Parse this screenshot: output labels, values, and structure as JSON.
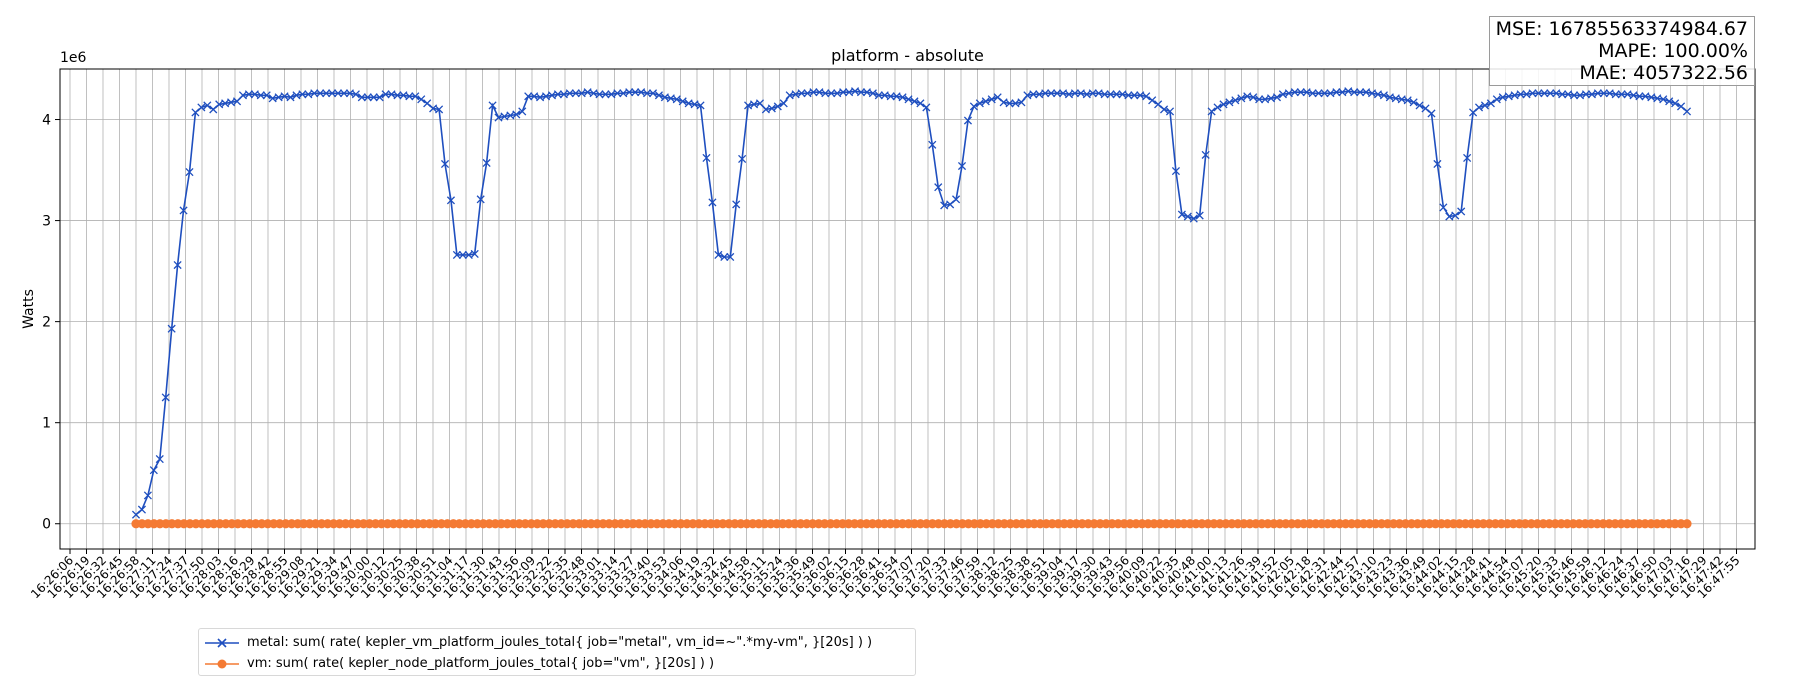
{
  "chart_data": {
    "type": "line",
    "title": "platform - absolute",
    "ylabel": "Watts",
    "y_multiplier_label": "1e6",
    "ylim": [
      -250000,
      4500000
    ],
    "yticks": [
      0,
      1000000,
      2000000,
      3000000,
      4000000
    ],
    "ytick_labels": [
      "0",
      "1",
      "2",
      "3",
      "4"
    ],
    "grid": true,
    "legend_position": "bottom-left",
    "x_tick_labels": [
      "16:26:06",
      "16:26:19",
      "16:26:32",
      "16:26:45",
      "16:26:58",
      "16:27:11",
      "16:27:24",
      "16:27:37",
      "16:27:50",
      "16:28:03",
      "16:28:16",
      "16:28:29",
      "16:28:42",
      "16:28:55",
      "16:29:08",
      "16:29:21",
      "16:29:34",
      "16:29:47",
      "16:30:00",
      "16:30:12",
      "16:30:25",
      "16:30:38",
      "16:30:51",
      "16:31:04",
      "16:31:17",
      "16:31:30",
      "16:31:43",
      "16:31:56",
      "16:32:09",
      "16:32:22",
      "16:32:35",
      "16:32:48",
      "16:33:01",
      "16:33:14",
      "16:33:27",
      "16:33:40",
      "16:33:53",
      "16:34:06",
      "16:34:19",
      "16:34:32",
      "16:34:45",
      "16:34:58",
      "16:35:11",
      "16:35:24",
      "16:35:36",
      "16:35:49",
      "16:36:02",
      "16:36:15",
      "16:36:28",
      "16:36:41",
      "16:36:54",
      "16:37:07",
      "16:37:20",
      "16:37:33",
      "16:37:46",
      "16:37:59",
      "16:38:12",
      "16:38:25",
      "16:38:38",
      "16:38:51",
      "16:39:04",
      "16:39:17",
      "16:39:30",
      "16:39:43",
      "16:39:56",
      "16:40:09",
      "16:40:22",
      "16:40:35",
      "16:40:48",
      "16:41:00",
      "16:41:13",
      "16:41:26",
      "16:41:39",
      "16:41:52",
      "16:42:05",
      "16:42:18",
      "16:42:31",
      "16:42:44",
      "16:42:57",
      "16:43:10",
      "16:43:23",
      "16:43:36",
      "16:43:49",
      "16:44:02",
      "16:44:15",
      "16:44:28",
      "16:44:41",
      "16:44:54",
      "16:45:07",
      "16:45:20",
      "16:45:33",
      "16:45:46",
      "16:45:59",
      "16:46:12",
      "16:46:24",
      "16:46:37",
      "16:46:50",
      "16:47:03",
      "16:47:16",
      "16:47:29",
      "16:47:42",
      "16:47:55"
    ],
    "series": [
      {
        "name": "metal: sum( rate( kepler_vm_platform_joules_total{ job=\"metal\", vm_id=~\".*my-vm\", }[20s] ) )",
        "color": "#1f4fbf",
        "marker": "x",
        "x_range_ticks": [
          4,
          98
        ],
        "values": [
          90000,
          140000,
          280000,
          530000,
          640000,
          1250000,
          1930000,
          2560000,
          3100000,
          3480000,
          4070000,
          4120000,
          4140000,
          4100000,
          4150000,
          4160000,
          4170000,
          4180000,
          4240000,
          4250000,
          4250000,
          4240000,
          4240000,
          4210000,
          4220000,
          4230000,
          4220000,
          4240000,
          4250000,
          4250000,
          4260000,
          4260000,
          4260000,
          4260000,
          4260000,
          4260000,
          4260000,
          4250000,
          4220000,
          4220000,
          4220000,
          4220000,
          4250000,
          4250000,
          4240000,
          4240000,
          4230000,
          4230000,
          4200000,
          4160000,
          4110000,
          4100000,
          3560000,
          3200000,
          2660000,
          2660000,
          2660000,
          2670000,
          3210000,
          3570000,
          4140000,
          4020000,
          4030000,
          4040000,
          4050000,
          4080000,
          4230000,
          4230000,
          4220000,
          4230000,
          4240000,
          4250000,
          4250000,
          4260000,
          4260000,
          4260000,
          4270000,
          4260000,
          4250000,
          4250000,
          4250000,
          4260000,
          4260000,
          4270000,
          4270000,
          4270000,
          4260000,
          4260000,
          4240000,
          4220000,
          4210000,
          4200000,
          4180000,
          4160000,
          4150000,
          4140000,
          3620000,
          3180000,
          2660000,
          2640000,
          2640000,
          3160000,
          3610000,
          4140000,
          4150000,
          4160000,
          4100000,
          4110000,
          4130000,
          4160000,
          4240000,
          4250000,
          4260000,
          4260000,
          4270000,
          4270000,
          4260000,
          4260000,
          4260000,
          4270000,
          4270000,
          4280000,
          4270000,
          4270000,
          4260000,
          4240000,
          4240000,
          4230000,
          4230000,
          4220000,
          4200000,
          4180000,
          4160000,
          4120000,
          3750000,
          3330000,
          3150000,
          3160000,
          3210000,
          3540000,
          3990000,
          4130000,
          4160000,
          4180000,
          4200000,
          4220000,
          4170000,
          4160000,
          4160000,
          4170000,
          4240000,
          4250000,
          4250000,
          4260000,
          4260000,
          4260000,
          4260000,
          4250000,
          4260000,
          4260000,
          4250000,
          4260000,
          4260000,
          4250000,
          4250000,
          4250000,
          4250000,
          4240000,
          4240000,
          4240000,
          4230000,
          4190000,
          4150000,
          4100000,
          4080000,
          3490000,
          3060000,
          3040000,
          3020000,
          3050000,
          3650000,
          4080000,
          4120000,
          4150000,
          4170000,
          4190000,
          4210000,
          4230000,
          4220000,
          4200000,
          4200000,
          4210000,
          4220000,
          4250000,
          4260000,
          4270000,
          4270000,
          4270000,
          4260000,
          4260000,
          4260000,
          4260000,
          4270000,
          4270000,
          4280000,
          4270000,
          4270000,
          4270000,
          4260000,
          4250000,
          4240000,
          4220000,
          4210000,
          4200000,
          4190000,
          4170000,
          4140000,
          4110000,
          4060000,
          3560000,
          3130000,
          3040000,
          3050000,
          3090000,
          3620000,
          4070000,
          4120000,
          4140000,
          4160000,
          4200000,
          4220000,
          4230000,
          4240000,
          4250000,
          4250000,
          4260000,
          4260000,
          4260000,
          4260000,
          4260000,
          4250000,
          4250000,
          4240000,
          4240000,
          4250000,
          4250000,
          4260000,
          4260000,
          4260000,
          4250000,
          4250000,
          4250000,
          4240000,
          4230000,
          4230000,
          4220000,
          4210000,
          4200000,
          4180000,
          4160000,
          4130000,
          4080000
        ]
      },
      {
        "name": "vm: sum( rate( kepler_node_platform_joules_total{ job=\"vm\", }[20s] ) )",
        "color": "#f47a33",
        "marker": "o",
        "x_range_ticks": [
          4,
          98
        ],
        "constant_value": 0,
        "point_count": 260
      }
    ]
  },
  "stats": {
    "mse": "MSE: 16785563374984.67",
    "mape": "MAPE: 100.00%",
    "mae": "MAE: 4057322.56"
  }
}
